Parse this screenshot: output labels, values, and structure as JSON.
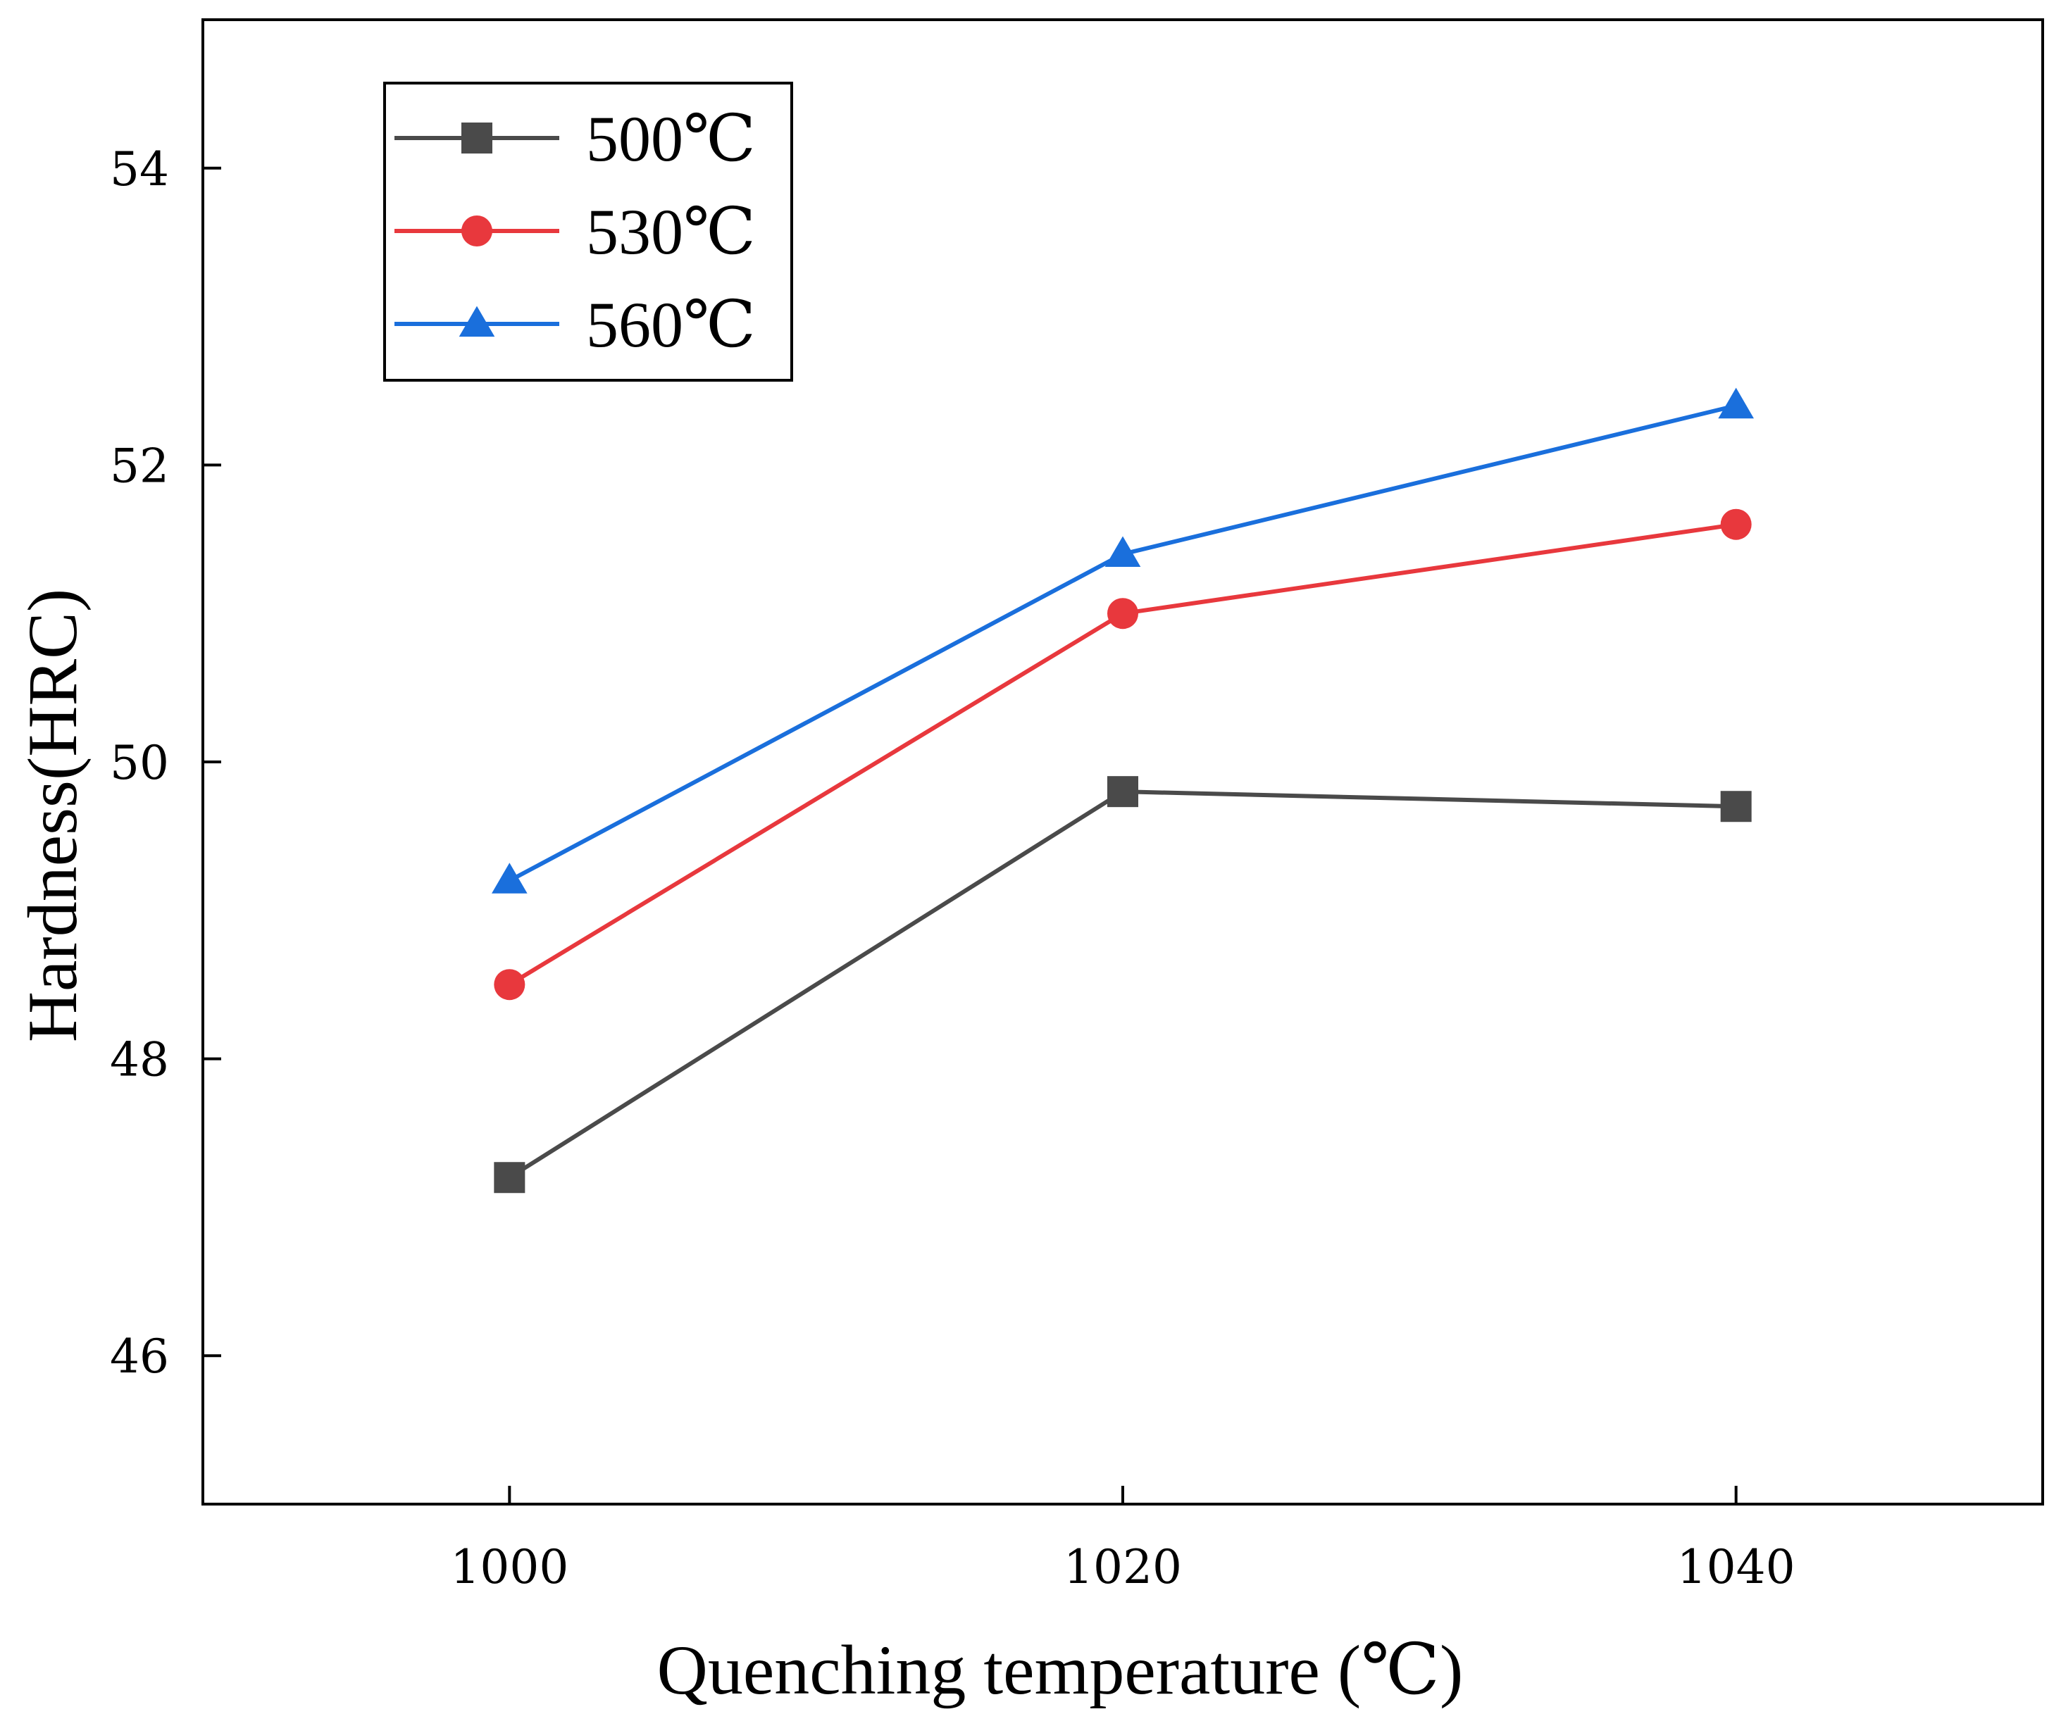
{
  "chart_data": {
    "type": "line",
    "xlabel": "Quenching temperature (℃)",
    "ylabel": "Hardness(HRC)",
    "x": [
      1000,
      1020,
      1040
    ],
    "x_ticks": [
      "1000",
      "1020",
      "1040"
    ],
    "y_ticks": [
      "46",
      "48",
      "50",
      "52",
      "54"
    ],
    "xlim": [
      990,
      1050
    ],
    "ylim": [
      45,
      55
    ],
    "grid": false,
    "legend_position": "top-left",
    "series": [
      {
        "name": "500℃",
        "values": [
          47.2,
          49.8,
          49.7
        ],
        "color": "#4a4a4a",
        "marker": "square"
      },
      {
        "name": "530℃",
        "values": [
          48.5,
          51.0,
          51.6
        ],
        "color": "#e8383d",
        "marker": "circle"
      },
      {
        "name": "560℃",
        "values": [
          49.2,
          51.4,
          52.4
        ],
        "color": "#1a6fdc",
        "marker": "triangle"
      }
    ]
  }
}
